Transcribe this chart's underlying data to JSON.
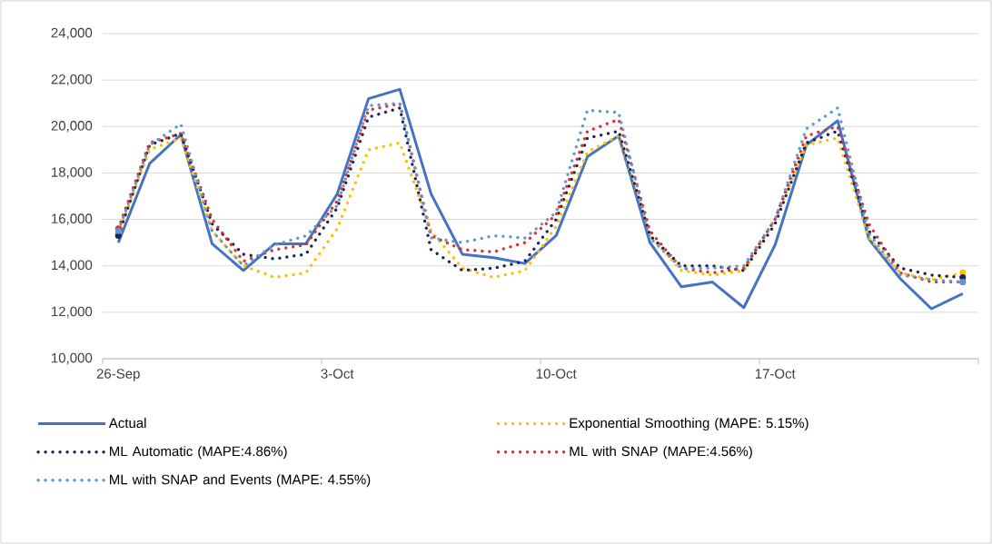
{
  "chart_data": {
    "type": "line",
    "categories": [
      "26-Sep",
      null,
      null,
      null,
      null,
      null,
      null,
      "3-Oct",
      null,
      null,
      null,
      null,
      null,
      null,
      "10-Oct",
      null,
      null,
      null,
      null,
      null,
      null,
      "17-Oct",
      null,
      null,
      null,
      null,
      null,
      null
    ],
    "ylim": [
      10000,
      24000
    ],
    "yticks": [
      {
        "value": 10000,
        "label": "10,000"
      },
      {
        "value": 12000,
        "label": "12,000"
      },
      {
        "value": 14000,
        "label": "14,000"
      },
      {
        "value": 16000,
        "label": "16,000"
      },
      {
        "value": 18000,
        "label": "18,000"
      },
      {
        "value": 20000,
        "label": "20,000"
      },
      {
        "value": 22000,
        "label": "22,000"
      },
      {
        "value": 24000,
        "label": "24,000"
      }
    ],
    "grid": "y",
    "legend": "bottom",
    "series": [
      {
        "name": "Actual",
        "color": "#4472c4",
        "line_style": "solid",
        "values": [
          15000,
          18400,
          19650,
          14950,
          13800,
          14950,
          14950,
          17100,
          21200,
          21600,
          17100,
          14500,
          14350,
          14100,
          15300,
          18700,
          19600,
          15000,
          13100,
          13300,
          12200,
          14900,
          19200,
          20250,
          15150,
          13450,
          12150,
          12800
        ]
      },
      {
        "name": "Exponential Smoothing (MAPE: 5.15%)",
        "color": "#ffc000",
        "line_style": "dotted",
        "values": [
          15400,
          19000,
          19500,
          15500,
          14000,
          13500,
          13700,
          15600,
          19000,
          19300,
          15500,
          13900,
          13500,
          13800,
          15700,
          18900,
          19600,
          15300,
          13800,
          13600,
          13800,
          16000,
          19200,
          19500,
          15200,
          13700,
          13400,
          13700
        ]
      },
      {
        "name": "ML Automatic (MAPE:4.86%)",
        "color": "#1f2550",
        "line_style": "dotted",
        "values": [
          15300,
          19200,
          19700,
          15800,
          14500,
          14300,
          14500,
          16500,
          20400,
          20800,
          14700,
          13800,
          13900,
          14200,
          16000,
          19500,
          19800,
          15300,
          14000,
          14000,
          13800,
          15800,
          19300,
          19800,
          15500,
          13900,
          13600,
          13500
        ]
      },
      {
        "name": "ML with SNAP (MAPE:4.56%)",
        "color": "#e0302a",
        "line_style": "dotted",
        "values": [
          15600,
          19300,
          19700,
          16000,
          14200,
          14700,
          14900,
          16800,
          20700,
          21000,
          15300,
          14700,
          14600,
          15000,
          16200,
          19800,
          20300,
          15500,
          13900,
          13700,
          13900,
          16000,
          19600,
          20000,
          15800,
          13700,
          13300,
          13300
        ]
      },
      {
        "name": "ML with SNAP and Events (MAPE: 4.55%)",
        "color": "#5b9bd5",
        "line_style": "dotted",
        "values": [
          15500,
          19200,
          20100,
          15500,
          14000,
          14900,
          15300,
          16600,
          20900,
          21000,
          15200,
          15000,
          15300,
          15200,
          16300,
          20700,
          20600,
          15200,
          13900,
          13900,
          14000,
          16000,
          19900,
          20800,
          15400,
          13600,
          13400,
          13300
        ]
      }
    ]
  }
}
